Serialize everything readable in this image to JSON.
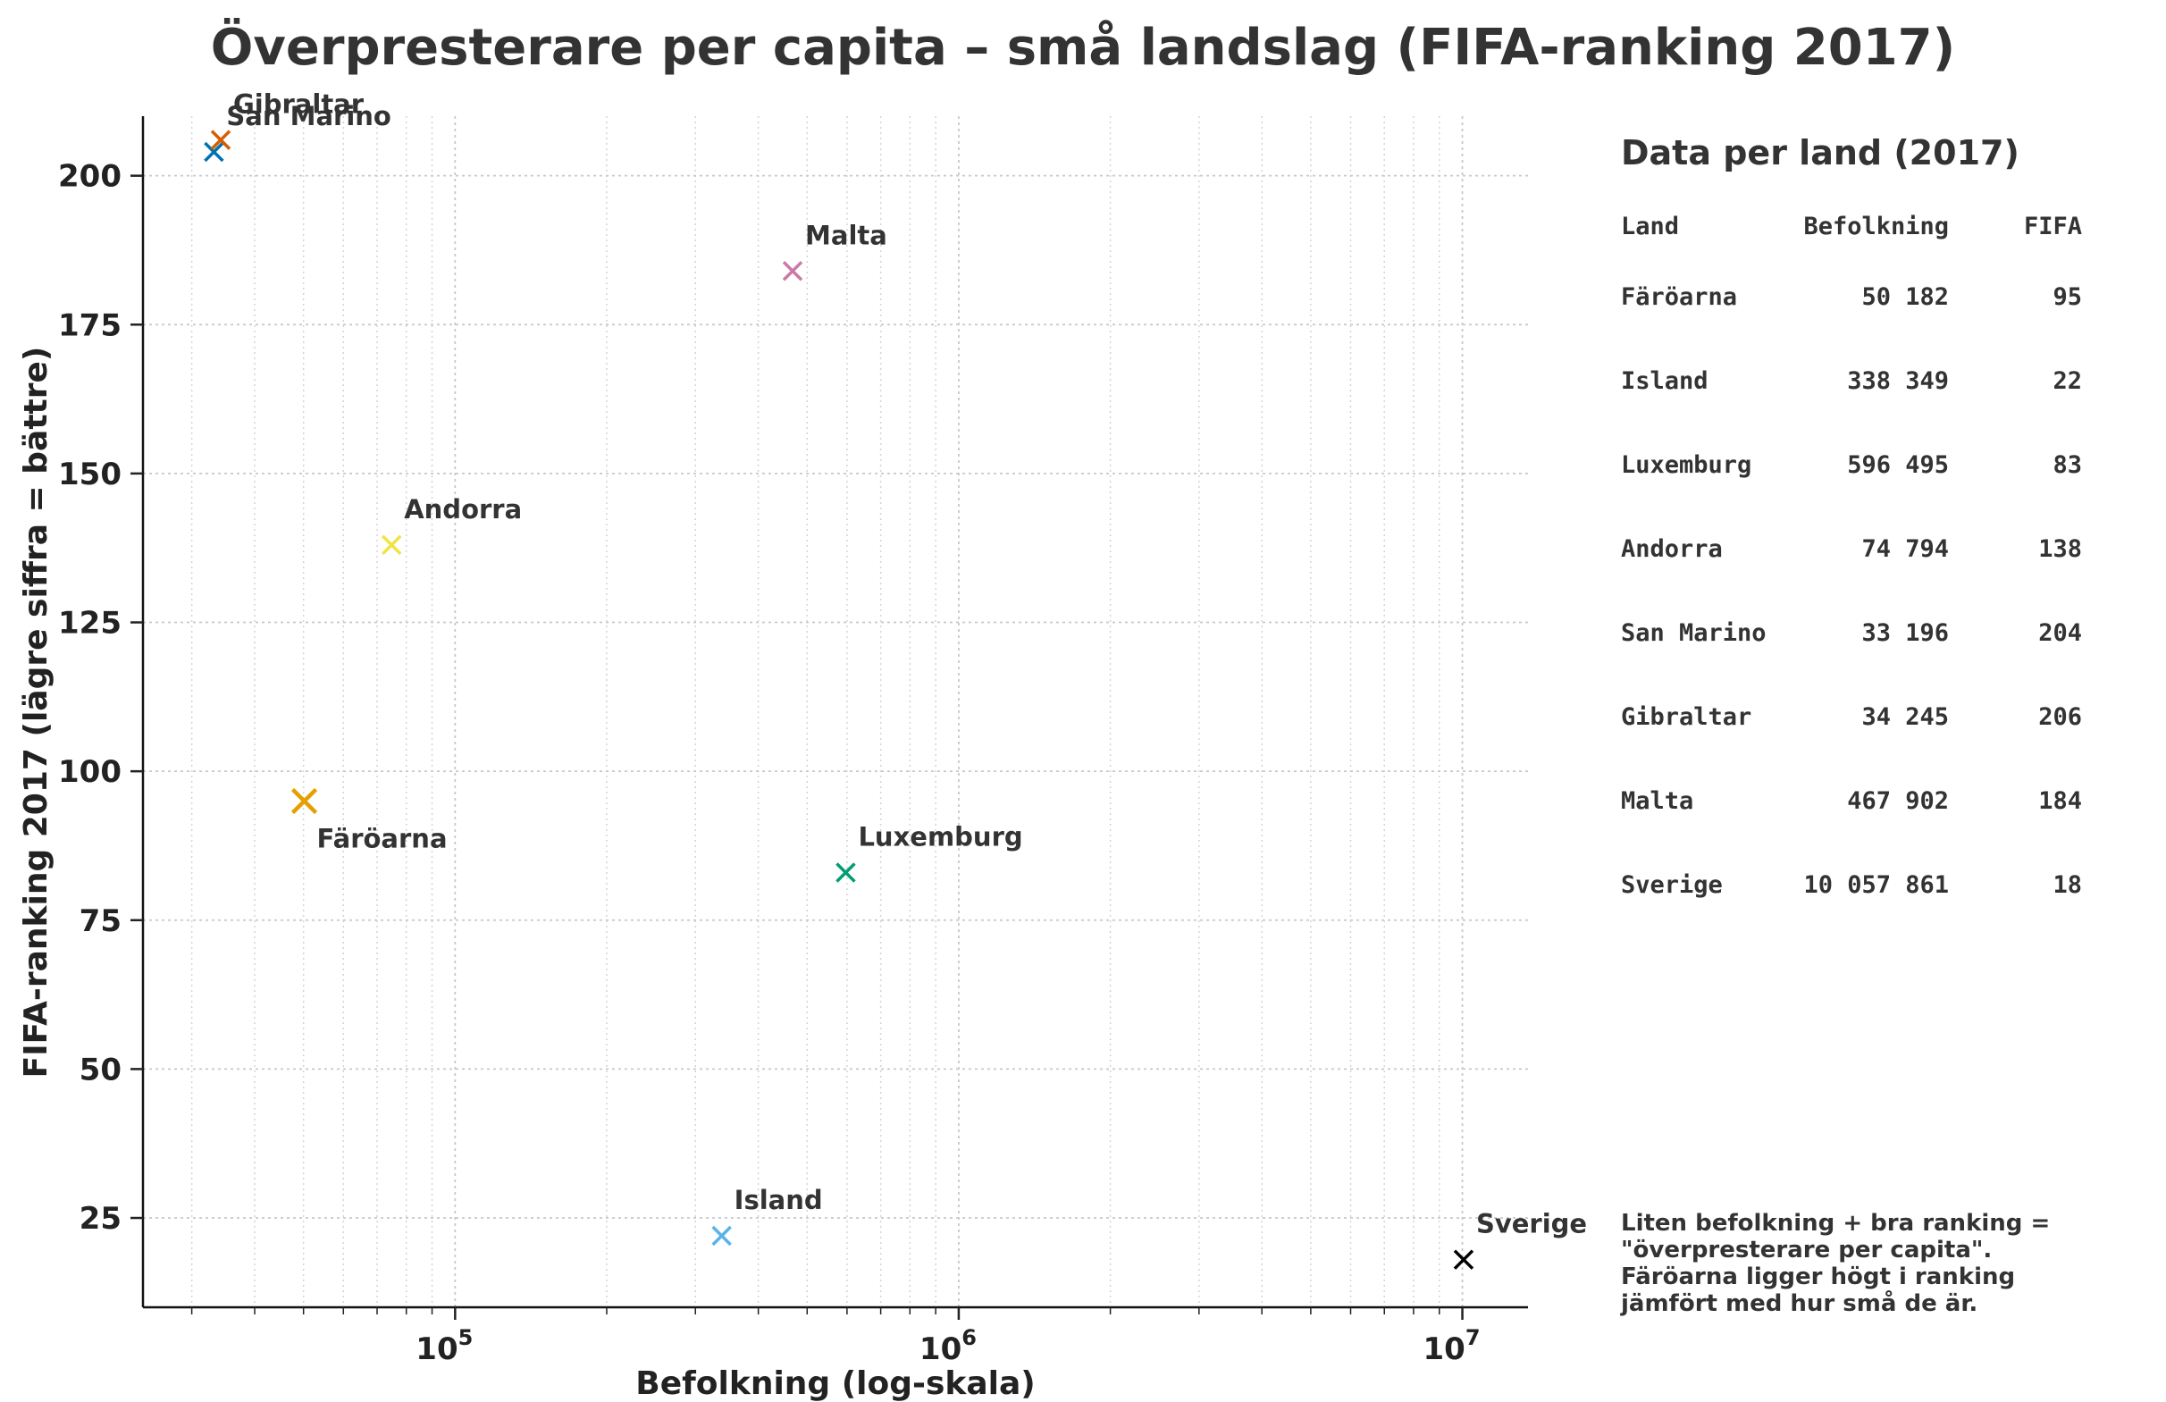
{
  "chart_data": {
    "type": "scatter",
    "title": "Överpresterare per capita – små landslag (FIFA-ranking 2017)",
    "xlabel": "Befolkning (log-skala)",
    "ylabel": "FIFA-ranking 2017 (lägre siffra = bättre)",
    "xscale": "log",
    "xlim": [
      24000,
      13500000
    ],
    "ylim": [
      10,
      210
    ],
    "yticks": [
      25,
      50,
      75,
      100,
      125,
      150,
      175,
      200
    ],
    "xticks": [
      {
        "value": 100000,
        "base": "10",
        "exp": "5"
      },
      {
        "value": 1000000,
        "base": "10",
        "exp": "6"
      },
      {
        "value": 10000000,
        "base": "10",
        "exp": "7"
      }
    ],
    "grid": true,
    "points": [
      {
        "name": "Färöarna",
        "population": 50182,
        "rank": 95,
        "color": "#E69F00",
        "highlight": true,
        "label_pos": "below"
      },
      {
        "name": "Island",
        "population": 338349,
        "rank": 22,
        "color": "#56B4E9",
        "highlight": false,
        "label_pos": "above"
      },
      {
        "name": "Luxemburg",
        "population": 596495,
        "rank": 83,
        "color": "#009E73",
        "highlight": false,
        "label_pos": "above"
      },
      {
        "name": "Andorra",
        "population": 74794,
        "rank": 138,
        "color": "#F0E442",
        "highlight": false,
        "label_pos": "above"
      },
      {
        "name": "San Marino",
        "population": 33196,
        "rank": 204,
        "color": "#0072B2",
        "highlight": false,
        "label_pos": "above"
      },
      {
        "name": "Gibraltar",
        "population": 34245,
        "rank": 206,
        "color": "#D55E00",
        "highlight": false,
        "label_pos": "above"
      },
      {
        "name": "Malta",
        "population": 467902,
        "rank": 184,
        "color": "#CC79A7",
        "highlight": false,
        "label_pos": "above"
      },
      {
        "name": "Sverige",
        "population": 10057861,
        "rank": 18,
        "color": "#000000",
        "highlight": false,
        "label_pos": "above"
      }
    ]
  },
  "side_panel": {
    "title": "Data per land (2017)",
    "headers": {
      "land": "Land",
      "pop": "Befolkning",
      "fifa": "FIFA"
    },
    "rows": [
      {
        "land": "Färöarna",
        "pop": "50 182",
        "fifa": "95"
      },
      {
        "land": "Island",
        "pop": "338 349",
        "fifa": "22"
      },
      {
        "land": "Luxemburg",
        "pop": "596 495",
        "fifa": "83"
      },
      {
        "land": "Andorra",
        "pop": "74 794",
        "fifa": "138"
      },
      {
        "land": "San Marino",
        "pop": "33 196",
        "fifa": "204"
      },
      {
        "land": "Gibraltar",
        "pop": "34 245",
        "fifa": "206"
      },
      {
        "land": "Malta",
        "pop": "467 902",
        "fifa": "184"
      },
      {
        "land": "Sverige",
        "pop": "10 057 861",
        "fifa": "18"
      }
    ],
    "note": [
      "Liten befolkning + bra ranking =",
      "\"överpresterare per capita\".",
      "Färöarna ligger högt i ranking",
      "jämfört med hur små de är."
    ]
  }
}
